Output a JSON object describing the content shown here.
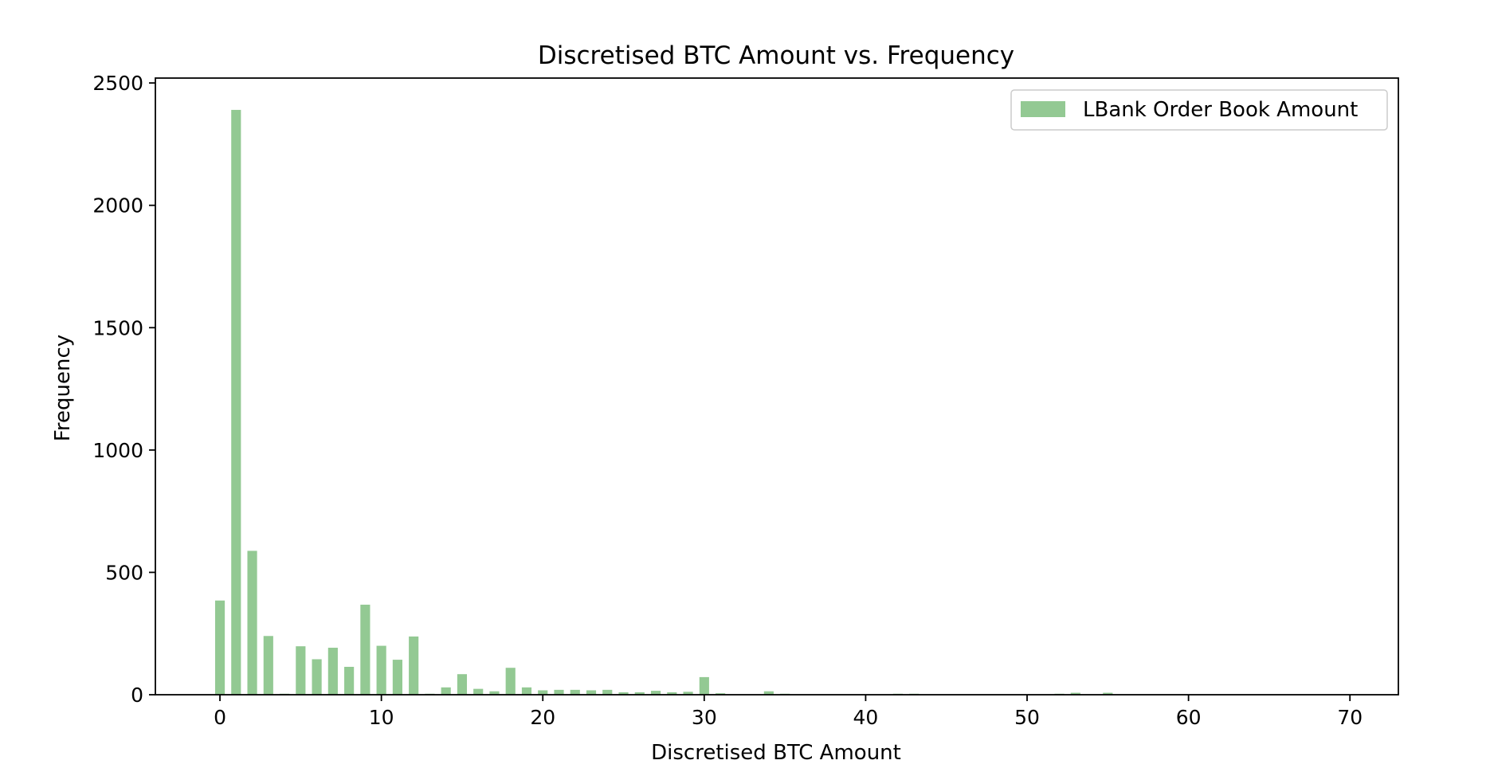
{
  "chart_data": {
    "type": "bar",
    "title": "Discretised BTC Amount vs. Frequency",
    "xlabel": "Discretised BTC Amount",
    "ylabel": "Frequency",
    "xlim": [
      -4,
      73
    ],
    "ylim": [
      0,
      2520
    ],
    "xticks": [
      0,
      10,
      20,
      30,
      40,
      50,
      60,
      70
    ],
    "yticks": [
      0,
      500,
      1000,
      1500,
      2000,
      2500
    ],
    "grid": false,
    "legend_position": "top-right",
    "bar_color": "#93c993",
    "series": [
      {
        "name": "LBank Order Book Amount",
        "x": [
          0,
          1,
          2,
          3,
          4,
          5,
          6,
          7,
          8,
          9,
          10,
          11,
          12,
          13,
          14,
          15,
          16,
          17,
          18,
          19,
          20,
          21,
          22,
          23,
          24,
          25,
          26,
          27,
          28,
          29,
          30,
          31,
          34,
          35,
          42,
          43,
          52,
          53,
          55
        ],
        "values": [
          385,
          2390,
          588,
          240,
          4,
          198,
          145,
          192,
          114,
          368,
          200,
          143,
          238,
          4,
          30,
          84,
          24,
          14,
          110,
          30,
          18,
          20,
          20,
          18,
          20,
          10,
          10,
          16,
          10,
          12,
          72,
          6,
          14,
          4,
          4,
          4,
          4,
          8,
          8
        ]
      }
    ]
  }
}
